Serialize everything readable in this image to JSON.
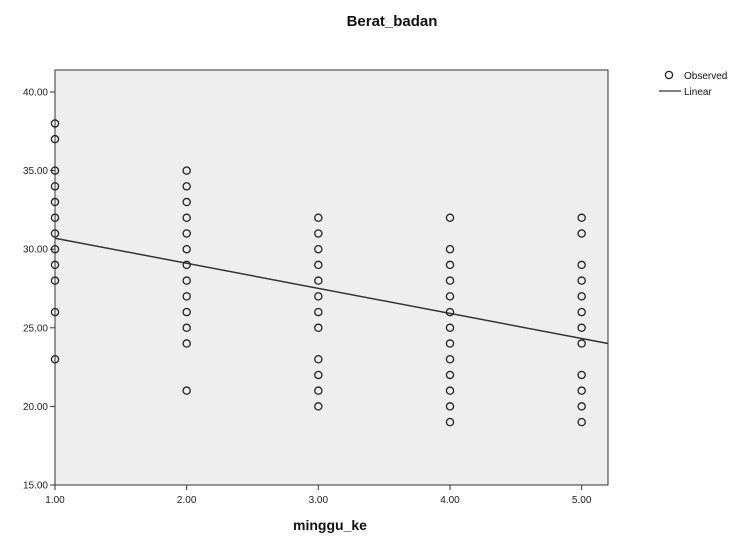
{
  "chart_data": {
    "type": "scatter",
    "title": "Berat_badan",
    "xlabel": "minggu_ke",
    "ylabel": "",
    "xlim": [
      1.0,
      5.2
    ],
    "ylim": [
      15.0,
      41.4
    ],
    "xticks": [
      "1.00",
      "2.00",
      "3.00",
      "4.00",
      "5.00"
    ],
    "yticks": [
      "15.00",
      "20.00",
      "25.00",
      "30.00",
      "35.00",
      "40.00"
    ],
    "xtick_values": [
      1,
      2,
      3,
      4,
      5
    ],
    "ytick_values": [
      15,
      20,
      25,
      30,
      35,
      40
    ],
    "grid": false,
    "legend_position": "top-right",
    "legend": {
      "observed": "Observed",
      "linear": "Linear"
    },
    "colors": {
      "plot_background": "#eeeeee",
      "marker": "#222222",
      "line": "#333333"
    },
    "series": [
      {
        "name": "Observed",
        "type": "scatter",
        "points": [
          [
            1,
            38
          ],
          [
            1,
            37
          ],
          [
            1,
            35
          ],
          [
            1,
            34
          ],
          [
            1,
            33
          ],
          [
            1,
            32
          ],
          [
            1,
            31
          ],
          [
            1,
            30
          ],
          [
            1,
            29
          ],
          [
            1,
            28
          ],
          [
            1,
            26
          ],
          [
            1,
            23
          ],
          [
            2,
            35
          ],
          [
            2,
            34
          ],
          [
            2,
            33
          ],
          [
            2,
            32
          ],
          [
            2,
            31
          ],
          [
            2,
            30
          ],
          [
            2,
            29
          ],
          [
            2,
            28
          ],
          [
            2,
            27
          ],
          [
            2,
            26
          ],
          [
            2,
            25
          ],
          [
            2,
            24
          ],
          [
            2,
            21
          ],
          [
            3,
            32
          ],
          [
            3,
            31
          ],
          [
            3,
            30
          ],
          [
            3,
            29
          ],
          [
            3,
            28
          ],
          [
            3,
            27
          ],
          [
            3,
            26
          ],
          [
            3,
            25
          ],
          [
            3,
            23
          ],
          [
            3,
            22
          ],
          [
            3,
            21
          ],
          [
            3,
            20
          ],
          [
            4,
            32
          ],
          [
            4,
            30
          ],
          [
            4,
            29
          ],
          [
            4,
            28
          ],
          [
            4,
            27
          ],
          [
            4,
            26
          ],
          [
            4,
            25
          ],
          [
            4,
            24
          ],
          [
            4,
            23
          ],
          [
            4,
            22
          ],
          [
            4,
            21
          ],
          [
            4,
            20
          ],
          [
            4,
            19
          ],
          [
            5,
            32
          ],
          [
            5,
            31
          ],
          [
            5,
            29
          ],
          [
            5,
            28
          ],
          [
            5,
            27
          ],
          [
            5,
            26
          ],
          [
            5,
            25
          ],
          [
            5,
            24
          ],
          [
            5,
            22
          ],
          [
            5,
            21
          ],
          [
            5,
            20
          ],
          [
            5,
            19
          ]
        ]
      },
      {
        "name": "Linear",
        "type": "line",
        "points": [
          [
            1.0,
            30.7
          ],
          [
            5.2,
            24.0
          ]
        ]
      }
    ]
  }
}
